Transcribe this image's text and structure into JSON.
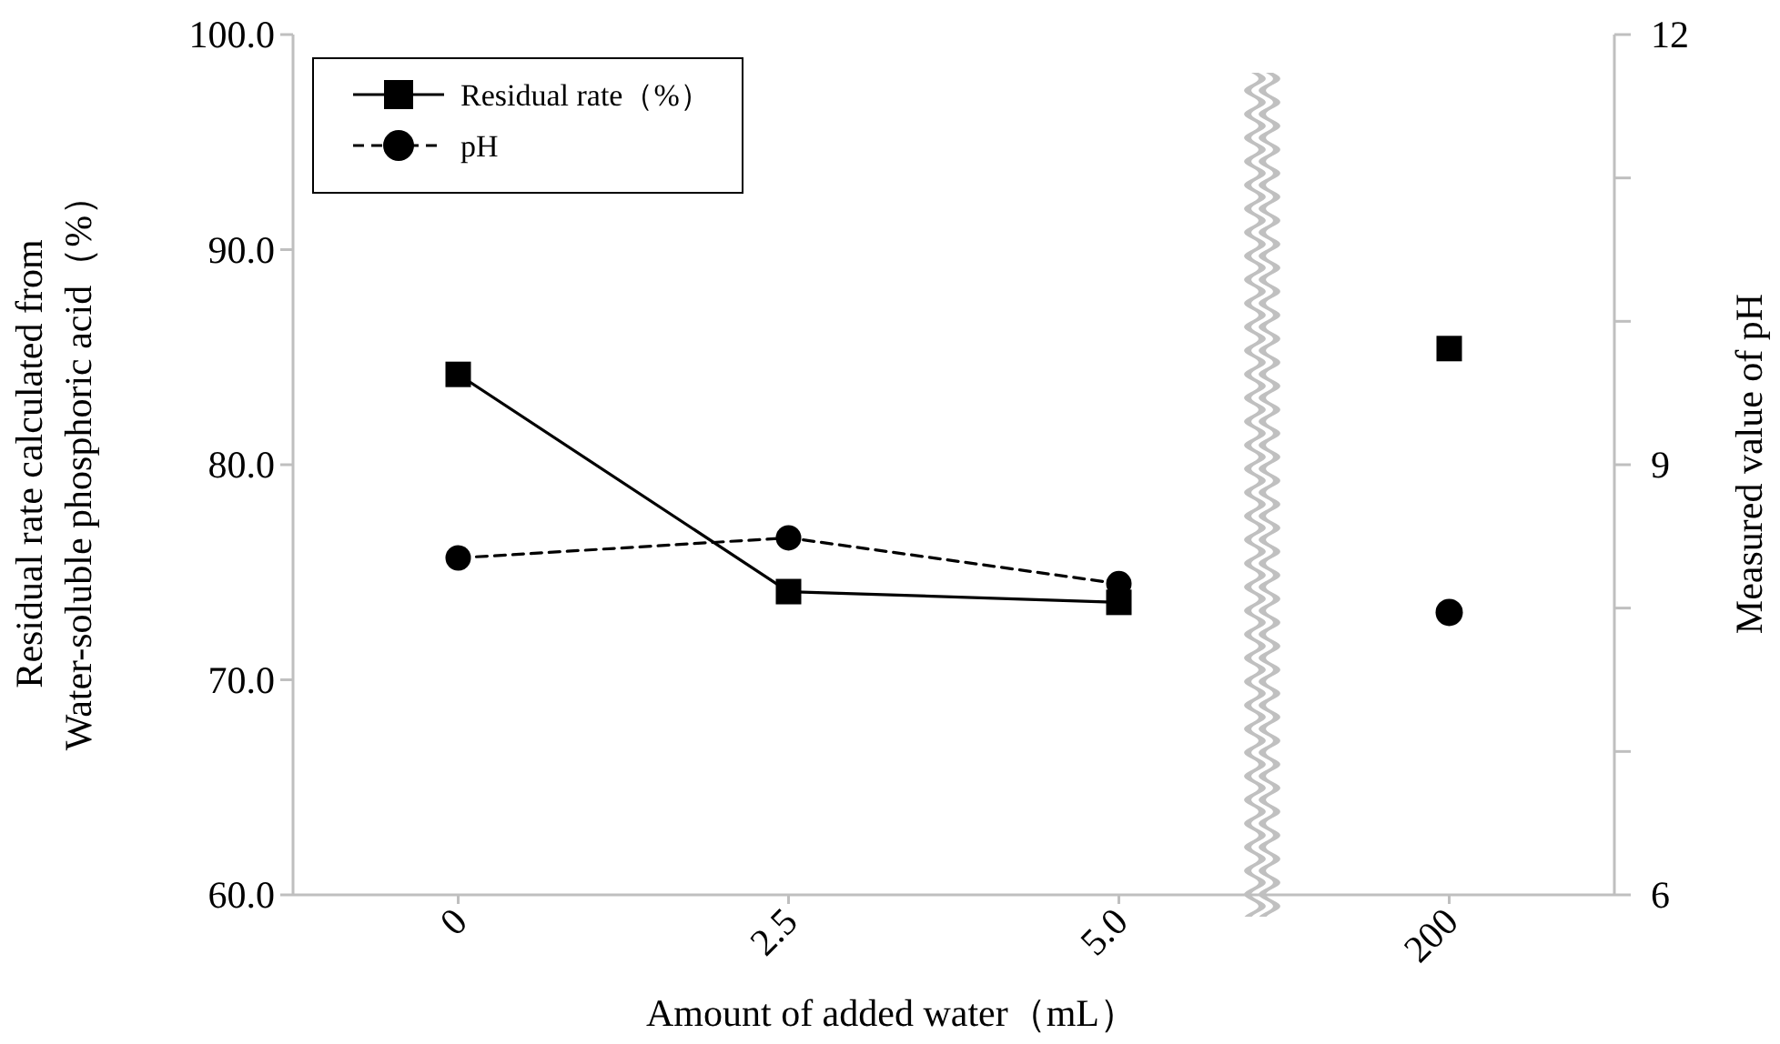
{
  "chart_data": {
    "type": "line",
    "xlabel": "Amount  of added water（mL）",
    "ylabel": "Residual rate calculated from\nWater-soluble phosphoric acid（%）",
    "y2label": "Measured value of pH",
    "categories": [
      "0",
      "2.5",
      "5.0",
      "200"
    ],
    "series": [
      {
        "name": "Residual rate（%）",
        "color": "#000000",
        "values": [
          84.2,
          74.1,
          73.6,
          null
        ],
        "marker": "square",
        "line_style": "solid"
      },
      {
        "name": "pH",
        "color": "#000000",
        "values": [
          8.35,
          8.49,
          8.17,
          null
        ],
        "marker": "circle",
        "line_style": "dashed",
        "axis": "y2"
      },
      {
        "type": "scatter",
        "color": "#000000",
        "values": [
          null,
          null,
          null,
          85.4
        ],
        "marker": "square"
      },
      {
        "type": "scatter",
        "color": "#000000",
        "values": [
          null,
          null,
          null,
          7.97
        ],
        "marker": "circle",
        "axis": "y2"
      }
    ],
    "ylim": [
      60,
      100
    ],
    "yticks": [
      {
        "value": 60,
        "label": "60.0"
      },
      {
        "value": 70,
        "label": "70.0"
      },
      {
        "value": 80,
        "label": "80.0"
      },
      {
        "value": 90,
        "label": "90.0"
      },
      {
        "value": 100,
        "label": "100.0"
      }
    ],
    "y2lim": [
      6,
      12
    ],
    "y2ticks": [
      6,
      {
        "value": 7,
        "label": null
      },
      {
        "value": 8,
        "label": null
      },
      9,
      {
        "value": 10,
        "label": null
      },
      {
        "value": 11,
        "label": null
      },
      12
    ],
    "grid": false,
    "legend": "top left"
  }
}
